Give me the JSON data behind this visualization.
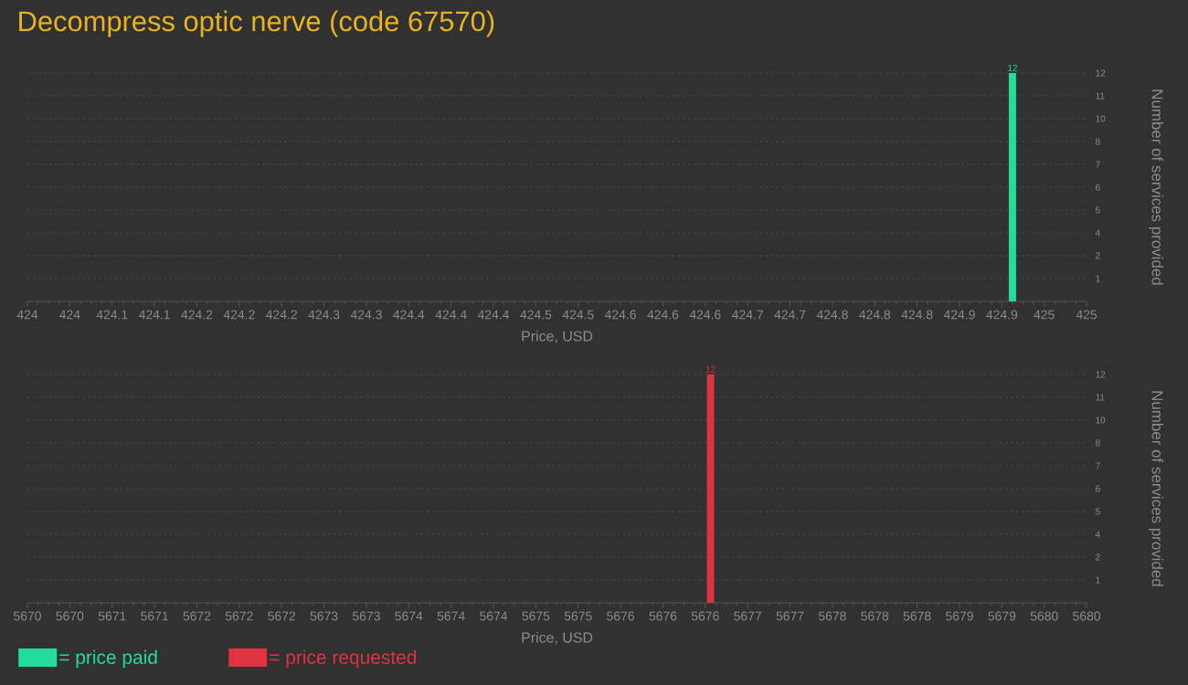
{
  "chart_data": [
    {
      "type": "bar",
      "title": "Decompress optic nerve (code 67570)",
      "xlabel": "Price, USD",
      "ylabel": "Number of services provided",
      "x": [
        424.93
      ],
      "series": [
        {
          "name": "= price paid",
          "color": "#22dd9a",
          "values": [
            12
          ]
        }
      ],
      "xlim": [
        424,
        425
      ],
      "xticks": [
        {
          "value": 424,
          "label": "424"
        },
        {
          "value": 424.04,
          "label": "424"
        },
        {
          "value": 424.08,
          "label": "424.1"
        },
        {
          "value": 424.12,
          "label": "424.1"
        },
        {
          "value": 424.16,
          "label": "424.2"
        },
        {
          "value": 424.2,
          "label": "424.2"
        },
        {
          "value": 424.24,
          "label": "424.2"
        },
        {
          "value": 424.28,
          "label": "424.3"
        },
        {
          "value": 424.32,
          "label": "424.3"
        },
        {
          "value": 424.36,
          "label": "424.4"
        },
        {
          "value": 424.4,
          "label": "424.4"
        },
        {
          "value": 424.44,
          "label": "424.4"
        },
        {
          "value": 424.48,
          "label": "424.5"
        },
        {
          "value": 424.52,
          "label": "424.5"
        },
        {
          "value": 424.56,
          "label": "424.6"
        },
        {
          "value": 424.6,
          "label": "424.6"
        },
        {
          "value": 424.64,
          "label": "424.6"
        },
        {
          "value": 424.68,
          "label": "424.7"
        },
        {
          "value": 424.72,
          "label": "424.7"
        },
        {
          "value": 424.76,
          "label": "424.8"
        },
        {
          "value": 424.8,
          "label": "424.8"
        },
        {
          "value": 424.84,
          "label": "424.8"
        },
        {
          "value": 424.88,
          "label": "424.9"
        },
        {
          "value": 424.92,
          "label": "424.9"
        },
        {
          "value": 424.96,
          "label": "425"
        },
        {
          "value": 425,
          "label": "425"
        }
      ],
      "ylim": [
        0,
        12
      ],
      "yticks": [
        {
          "value": 1.2,
          "label": "1"
        },
        {
          "value": 2.4,
          "label": "2"
        },
        {
          "value": 3.6,
          "label": "4"
        },
        {
          "value": 4.8,
          "label": "5"
        },
        {
          "value": 6,
          "label": "6"
        },
        {
          "value": 7.2,
          "label": "7"
        },
        {
          "value": 8.4,
          "label": "8"
        },
        {
          "value": 9.6,
          "label": "10"
        },
        {
          "value": 10.8,
          "label": "11"
        },
        {
          "value": 12,
          "label": "12"
        }
      ],
      "grid": "y",
      "data_labels": true,
      "legend": "bottom"
    },
    {
      "type": "bar",
      "xlabel": "Price, USD",
      "ylabel": "Number of services provided",
      "x": [
        5676.45
      ],
      "series": [
        {
          "name": "= price requested",
          "color": "#e03240",
          "values": [
            12
          ]
        }
      ],
      "xlim": [
        5670,
        5680
      ],
      "xticks": [
        {
          "value": 5670,
          "label": "5670"
        },
        {
          "value": 5670.4,
          "label": "5670"
        },
        {
          "value": 5670.8,
          "label": "5671"
        },
        {
          "value": 5671.2,
          "label": "5671"
        },
        {
          "value": 5671.6,
          "label": "5672"
        },
        {
          "value": 5672,
          "label": "5672"
        },
        {
          "value": 5672.4,
          "label": "5672"
        },
        {
          "value": 5672.8,
          "label": "5673"
        },
        {
          "value": 5673.2,
          "label": "5673"
        },
        {
          "value": 5673.6,
          "label": "5674"
        },
        {
          "value": 5674,
          "label": "5674"
        },
        {
          "value": 5674.4,
          "label": "5674"
        },
        {
          "value": 5674.8,
          "label": "5675"
        },
        {
          "value": 5675.2,
          "label": "5675"
        },
        {
          "value": 5675.6,
          "label": "5676"
        },
        {
          "value": 5676,
          "label": "5676"
        },
        {
          "value": 5676.4,
          "label": "5676"
        },
        {
          "value": 5676.8,
          "label": "5677"
        },
        {
          "value": 5677.2,
          "label": "5677"
        },
        {
          "value": 5677.6,
          "label": "5678"
        },
        {
          "value": 5678,
          "label": "5678"
        },
        {
          "value": 5678.4,
          "label": "5678"
        },
        {
          "value": 5678.8,
          "label": "5679"
        },
        {
          "value": 5679.2,
          "label": "5679"
        },
        {
          "value": 5679.6,
          "label": "5680"
        },
        {
          "value": 5680,
          "label": "5680"
        }
      ],
      "ylim": [
        0,
        12
      ],
      "yticks": [
        {
          "value": 1.2,
          "label": "1"
        },
        {
          "value": 2.4,
          "label": "2"
        },
        {
          "value": 3.6,
          "label": "4"
        },
        {
          "value": 4.8,
          "label": "5"
        },
        {
          "value": 6,
          "label": "6"
        },
        {
          "value": 7.2,
          "label": "7"
        },
        {
          "value": 8.4,
          "label": "8"
        },
        {
          "value": 9.6,
          "label": "10"
        },
        {
          "value": 10.8,
          "label": "11"
        },
        {
          "value": 12,
          "label": "12"
        }
      ],
      "grid": "y",
      "data_labels": true,
      "legend": "bottom"
    }
  ]
}
